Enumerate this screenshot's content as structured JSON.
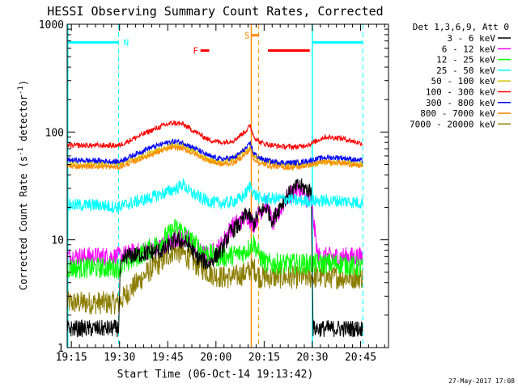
{
  "chart_data": {
    "type": "line",
    "title": "HESSI Observing Summary Count Rates, Corrected",
    "xlabel": "Start Time (06-Oct-14 19:13:42)",
    "ylabel_prefix": "Corrected Count Rate (s",
    "ylabel_sup1": "-1",
    "ylabel_mid": " detector",
    "ylabel_sup2": "-1",
    "ylabel_suffix": ")",
    "yscale": "log",
    "ylim": [
      1,
      1000
    ],
    "xlim_minutes": [
      0,
      100
    ],
    "x_tick_labels": [
      {
        "label": "19:15",
        "t": 1.3
      },
      {
        "label": "19:30",
        "t": 16.3
      },
      {
        "label": "19:45",
        "t": 31.3
      },
      {
        "label": "20:00",
        "t": 46.3
      },
      {
        "label": "20:15",
        "t": 61.3
      },
      {
        "label": "20:30",
        "t": 76.3
      },
      {
        "label": "20:45",
        "t": 91.3
      }
    ],
    "y_tick_labels": [
      {
        "label": "1",
        "v": 1
      },
      {
        "label": "10",
        "v": 10
      },
      {
        "label": "100",
        "v": 100
      },
      {
        "label": "1000",
        "v": 1000
      }
    ],
    "legend_header": "Det 1,3,6,9, Att 0",
    "legend_placement": "right",
    "footer_date": "27-May-2017 17:08",
    "series": [
      {
        "name": "3 - 6 keV",
        "color": "#000000",
        "points": [
          [
            0,
            1.5
          ],
          [
            16,
            1.5
          ],
          [
            16.5,
            5
          ],
          [
            18,
            7
          ],
          [
            25,
            7.5
          ],
          [
            30,
            8
          ],
          [
            34,
            10
          ],
          [
            38,
            9
          ],
          [
            40,
            7
          ],
          [
            44,
            6
          ],
          [
            48,
            8
          ],
          [
            51,
            12
          ],
          [
            54,
            14
          ],
          [
            56,
            18
          ],
          [
            58,
            14
          ],
          [
            60,
            18
          ],
          [
            62,
            20
          ],
          [
            64,
            15
          ],
          [
            66,
            20
          ],
          [
            68,
            25
          ],
          [
            70,
            28
          ],
          [
            72,
            32
          ],
          [
            74,
            30
          ],
          [
            76,
            28
          ],
          [
            76.5,
            1.5
          ],
          [
            92,
            1.5
          ]
        ],
        "noise": 0.08
      },
      {
        "name": "6 - 12 keV",
        "color": "#ff00ff",
        "points": [
          [
            0,
            7
          ],
          [
            16,
            7
          ],
          [
            20,
            7.5
          ],
          [
            25,
            8
          ],
          [
            30,
            9
          ],
          [
            34,
            10.5
          ],
          [
            38,
            10
          ],
          [
            40,
            8
          ],
          [
            44,
            7
          ],
          [
            48,
            9
          ],
          [
            51,
            13
          ],
          [
            54,
            15
          ],
          [
            56,
            17
          ],
          [
            58,
            14
          ],
          [
            60,
            18
          ],
          [
            62,
            22
          ],
          [
            64,
            14
          ],
          [
            66,
            18
          ],
          [
            68,
            24
          ],
          [
            70,
            27
          ],
          [
            72,
            30
          ],
          [
            74,
            25
          ],
          [
            76,
            22
          ],
          [
            78,
            7
          ],
          [
            85,
            7
          ],
          [
            92,
            7
          ]
        ],
        "noise": 0.09
      },
      {
        "name": "12 - 25 keV",
        "color": "#00ff00",
        "points": [
          [
            0,
            5.5
          ],
          [
            16,
            5.5
          ],
          [
            20,
            6.5
          ],
          [
            25,
            8
          ],
          [
            30,
            10
          ],
          [
            34,
            13
          ],
          [
            36,
            12
          ],
          [
            38,
            10
          ],
          [
            42,
            8
          ],
          [
            46,
            7
          ],
          [
            50,
            7
          ],
          [
            54,
            7.5
          ],
          [
            56,
            8
          ],
          [
            58,
            9.5
          ],
          [
            60,
            7
          ],
          [
            62,
            6
          ],
          [
            64,
            6
          ],
          [
            68,
            6
          ],
          [
            72,
            6
          ],
          [
            76,
            6
          ],
          [
            80,
            6
          ],
          [
            85,
            6
          ],
          [
            92,
            5.5
          ]
        ],
        "noise": 0.1
      },
      {
        "name": "25 - 50 keV",
        "color": "#00ffff",
        "points": [
          [
            0,
            21
          ],
          [
            10,
            21
          ],
          [
            16,
            20
          ],
          [
            20,
            22
          ],
          [
            25,
            24
          ],
          [
            30,
            27
          ],
          [
            34,
            30
          ],
          [
            36,
            33
          ],
          [
            38,
            28
          ],
          [
            42,
            24
          ],
          [
            46,
            22
          ],
          [
            50,
            22
          ],
          [
            54,
            24
          ],
          [
            56,
            28
          ],
          [
            57,
            32
          ],
          [
            58,
            27
          ],
          [
            60,
            24
          ],
          [
            64,
            24
          ],
          [
            68,
            24
          ],
          [
            72,
            23
          ],
          [
            76,
            23
          ],
          [
            80,
            23
          ],
          [
            85,
            23
          ],
          [
            92,
            22
          ]
        ],
        "noise": 0.06
      },
      {
        "name": "50 - 100 keV",
        "color": "#d4c400",
        "points": [
          [
            0,
            50
          ],
          [
            10,
            50
          ],
          [
            16,
            50
          ],
          [
            20,
            55
          ],
          [
            25,
            62
          ],
          [
            30,
            70
          ],
          [
            33,
            76
          ],
          [
            36,
            75
          ],
          [
            40,
            65
          ],
          [
            44,
            55
          ],
          [
            48,
            53
          ],
          [
            52,
            57
          ],
          [
            56,
            70
          ],
          [
            57,
            74
          ],
          [
            58,
            62
          ],
          [
            60,
            55
          ],
          [
            64,
            52
          ],
          [
            68,
            50
          ],
          [
            72,
            50
          ],
          [
            76,
            50
          ],
          [
            80,
            52
          ],
          [
            85,
            52
          ],
          [
            92,
            50
          ]
        ],
        "noise": 0.03
      },
      {
        "name": "100 - 300 keV",
        "color": "#ff0000",
        "points": [
          [
            0,
            75
          ],
          [
            10,
            75
          ],
          [
            16,
            75
          ],
          [
            20,
            85
          ],
          [
            25,
            100
          ],
          [
            30,
            115
          ],
          [
            33,
            122
          ],
          [
            36,
            118
          ],
          [
            40,
            100
          ],
          [
            44,
            85
          ],
          [
            48,
            80
          ],
          [
            52,
            84
          ],
          [
            56,
            105
          ],
          [
            57,
            115
          ],
          [
            58,
            92
          ],
          [
            60,
            80
          ],
          [
            64,
            75
          ],
          [
            68,
            73
          ],
          [
            72,
            73
          ],
          [
            76,
            78
          ],
          [
            80,
            90
          ],
          [
            85,
            88
          ],
          [
            92,
            78
          ]
        ],
        "noise": 0.025
      },
      {
        "name": "300 - 800 keV",
        "color": "#0000ff",
        "points": [
          [
            0,
            55
          ],
          [
            10,
            54
          ],
          [
            16,
            53
          ],
          [
            20,
            60
          ],
          [
            25,
            70
          ],
          [
            30,
            78
          ],
          [
            33,
            82
          ],
          [
            36,
            80
          ],
          [
            40,
            70
          ],
          [
            44,
            60
          ],
          [
            48,
            56
          ],
          [
            52,
            58
          ],
          [
            56,
            72
          ],
          [
            57,
            79
          ],
          [
            58,
            64
          ],
          [
            60,
            57
          ],
          [
            64,
            53
          ],
          [
            68,
            52
          ],
          [
            72,
            52
          ],
          [
            76,
            55
          ],
          [
            80,
            58
          ],
          [
            85,
            58
          ],
          [
            92,
            54
          ]
        ],
        "noise": 0.025
      },
      {
        "name": "800 - 7000 keV",
        "color": "#ff8c00",
        "points": [
          [
            0,
            48
          ],
          [
            10,
            48
          ],
          [
            16,
            47
          ],
          [
            20,
            52
          ],
          [
            25,
            60
          ],
          [
            30,
            68
          ],
          [
            33,
            72
          ],
          [
            36,
            70
          ],
          [
            40,
            62
          ],
          [
            44,
            54
          ],
          [
            48,
            50
          ],
          [
            52,
            52
          ],
          [
            56,
            64
          ],
          [
            57,
            70
          ],
          [
            58,
            57
          ],
          [
            60,
            51
          ],
          [
            64,
            48
          ],
          [
            68,
            47
          ],
          [
            72,
            47
          ],
          [
            76,
            50
          ],
          [
            80,
            53
          ],
          [
            85,
            52
          ],
          [
            92,
            48
          ]
        ],
        "noise": 0.025
      },
      {
        "name": "7000 - 20000 keV",
        "color": "#8b7d00",
        "points": [
          [
            0,
            2.6
          ],
          [
            16,
            2.6
          ],
          [
            20,
            3.5
          ],
          [
            25,
            5
          ],
          [
            30,
            6.5
          ],
          [
            33,
            8
          ],
          [
            36,
            7.5
          ],
          [
            40,
            6
          ],
          [
            44,
            5
          ],
          [
            48,
            4.5
          ],
          [
            52,
            4.5
          ],
          [
            56,
            5
          ],
          [
            58,
            5.5
          ],
          [
            60,
            4.5
          ],
          [
            64,
            4.5
          ],
          [
            68,
            4.5
          ],
          [
            72,
            4.5
          ],
          [
            76,
            4.5
          ],
          [
            80,
            4.5
          ],
          [
            85,
            4.5
          ],
          [
            92,
            4.5
          ]
        ],
        "noise": 0.11
      }
    ],
    "annotations": {
      "night_label": "N",
      "saa_label": "S",
      "flare_label": "F",
      "night_color": "#00ffff",
      "saa_color": "#ff8c00",
      "flare_color": "#ff0000"
    }
  }
}
